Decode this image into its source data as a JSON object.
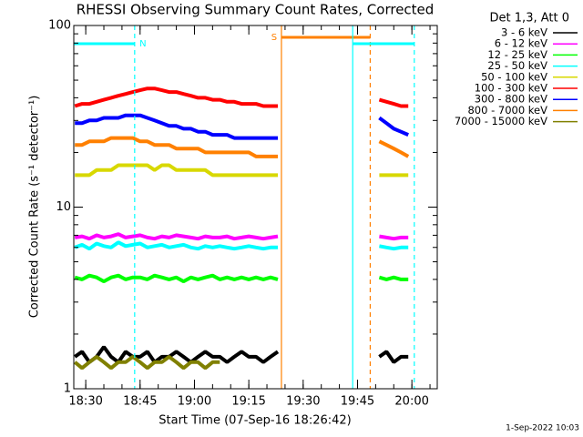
{
  "chart_data": {
    "type": "line",
    "title": "RHESSI Observing Summary Count Rates, Corrected",
    "xlabel": "Start Time (07-Sep-16 18:26:42)",
    "ylabel": "Corrected Count Rate (s⁻¹ detector⁻¹)",
    "legend_title": "Det 1,3, Att 0",
    "footer": "1-Sep-2022 10:03",
    "log_y": true,
    "legend": "outside-right",
    "xlim": [
      "18:26:42",
      "20:07"
    ],
    "xticks": [
      "18:30",
      "18:45",
      "19:00",
      "19:15",
      "19:30",
      "19:45",
      "20:00"
    ],
    "ylim": [
      1,
      100
    ],
    "yticks": [
      1,
      10,
      100
    ],
    "x": [
      "18:27",
      "18:29",
      "18:31",
      "18:33",
      "18:35",
      "18:37",
      "18:39",
      "18:41",
      "18:43",
      "18:45",
      "18:47",
      "18:49",
      "18:51",
      "18:53",
      "18:55",
      "18:57",
      "18:59",
      "19:01",
      "19:03",
      "19:05",
      "19:07",
      "19:09",
      "19:11",
      "19:13",
      "19:15",
      "19:17",
      "19:19",
      "19:21",
      "19:23",
      "19:37",
      "19:51",
      "19:53",
      "19:55",
      "19:57",
      "19:59"
    ],
    "series": [
      {
        "name": "3 - 6 keV",
        "color": "#000000",
        "values": [
          1.5,
          1.6,
          1.4,
          1.5,
          1.7,
          1.5,
          1.4,
          1.6,
          1.5,
          1.5,
          1.6,
          1.4,
          1.5,
          1.5,
          1.6,
          1.5,
          1.4,
          1.5,
          1.6,
          1.5,
          1.5,
          1.4,
          1.5,
          1.6,
          1.5,
          1.5,
          1.4,
          1.5,
          1.6,
          null,
          1.5,
          1.6,
          1.4,
          1.5,
          1.5
        ]
      },
      {
        "name": "6 - 12 keV",
        "color": "#ff00ff",
        "values": [
          6.8,
          6.9,
          6.7,
          7.0,
          6.8,
          6.9,
          7.1,
          6.8,
          6.9,
          7.0,
          6.8,
          6.7,
          6.9,
          6.8,
          7.0,
          6.9,
          6.8,
          6.7,
          6.9,
          6.8,
          6.8,
          6.9,
          6.7,
          6.8,
          6.9,
          6.8,
          6.7,
          6.8,
          6.9,
          null,
          6.9,
          6.8,
          6.7,
          6.8,
          6.8
        ]
      },
      {
        "name": "12 - 25 keV",
        "color": "#00ff00",
        "values": [
          4.1,
          4.0,
          4.2,
          4.1,
          3.9,
          4.1,
          4.2,
          4.0,
          4.1,
          4.1,
          4.0,
          4.2,
          4.1,
          4.0,
          4.1,
          3.9,
          4.1,
          4.0,
          4.1,
          4.2,
          4.0,
          4.1,
          4.0,
          4.1,
          4.0,
          4.1,
          4.0,
          4.1,
          4.0,
          null,
          4.1,
          4.0,
          4.1,
          4.0,
          4.0
        ]
      },
      {
        "name": "25 - 50 keV",
        "color": "#00ffff",
        "values": [
          6.0,
          6.2,
          5.9,
          6.3,
          6.1,
          6.0,
          6.4,
          6.1,
          6.2,
          6.3,
          6.0,
          6.1,
          6.2,
          6.0,
          6.1,
          6.2,
          6.0,
          5.9,
          6.1,
          6.0,
          6.1,
          6.0,
          5.9,
          6.0,
          6.1,
          6.0,
          5.9,
          6.0,
          6.0,
          null,
          6.1,
          6.0,
          5.9,
          6.0,
          6.0
        ]
      },
      {
        "name": "50 - 100 keV",
        "color": "#d8d800",
        "values": [
          15,
          15,
          15,
          16,
          16,
          16,
          17,
          17,
          17,
          17,
          17,
          16,
          17,
          17,
          16,
          16,
          16,
          16,
          16,
          15,
          15,
          15,
          15,
          15,
          15,
          15,
          15,
          15,
          15,
          null,
          15,
          15,
          15,
          15,
          15
        ]
      },
      {
        "name": "100 - 300 keV",
        "color": "#ff0000",
        "values": [
          36,
          37,
          37,
          38,
          39,
          40,
          41,
          42,
          43,
          44,
          45,
          45,
          44,
          43,
          43,
          42,
          41,
          40,
          40,
          39,
          39,
          38,
          38,
          37,
          37,
          37,
          36,
          36,
          36,
          null,
          39,
          38,
          37,
          36,
          36
        ]
      },
      {
        "name": "300 - 800 keV",
        "color": "#0000ff",
        "values": [
          29,
          29,
          30,
          30,
          31,
          31,
          31,
          32,
          32,
          32,
          31,
          30,
          29,
          28,
          28,
          27,
          27,
          26,
          26,
          25,
          25,
          25,
          24,
          24,
          24,
          24,
          24,
          24,
          24,
          null,
          31,
          29,
          27,
          26,
          25
        ]
      },
      {
        "name": "800 - 7000 keV",
        "color": "#ff8000",
        "values": [
          22,
          22,
          23,
          23,
          23,
          24,
          24,
          24,
          24,
          23,
          23,
          22,
          22,
          22,
          21,
          21,
          21,
          21,
          20,
          20,
          20,
          20,
          20,
          20,
          20,
          19,
          19,
          19,
          19,
          null,
          23,
          22,
          21,
          20,
          19
        ]
      },
      {
        "name": "7000 - 15000 keV",
        "color": "#808000",
        "values": [
          1.4,
          1.3,
          1.4,
          1.5,
          1.4,
          1.3,
          1.4,
          1.4,
          1.5,
          1.4,
          1.3,
          1.4,
          1.4,
          1.5,
          1.4,
          1.3,
          1.4,
          1.4,
          1.3,
          1.4,
          1.4,
          null,
          null,
          null,
          null,
          null,
          null,
          null,
          null,
          null,
          null,
          null,
          null,
          null,
          null
        ]
      }
    ],
    "intervals": [
      {
        "label": "N",
        "start": "18:26:42",
        "end": "18:43:30",
        "color": "#00ffff"
      },
      {
        "label": "S",
        "start": "19:24",
        "end": "19:48:30",
        "color": "#ff8000"
      },
      {
        "start": "19:43:40",
        "end": "20:00:40",
        "color": "#00ffff"
      }
    ]
  }
}
